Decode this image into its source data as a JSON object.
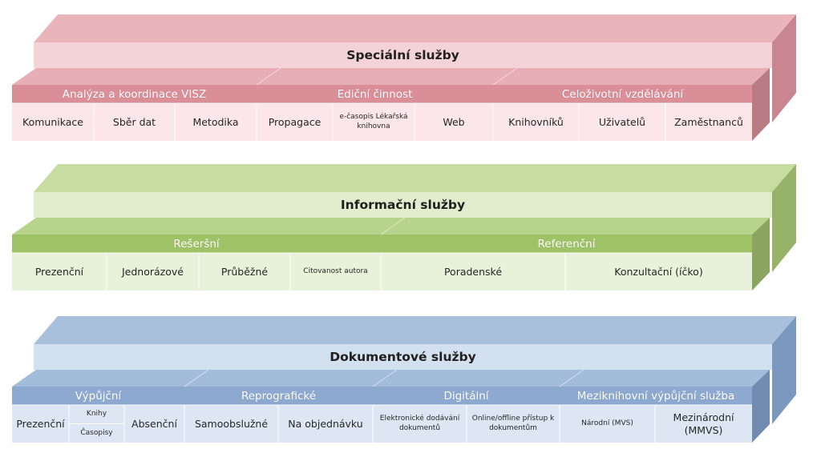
{
  "layers": [
    {
      "id": "specialni",
      "title": "Speciální služby",
      "palette": {
        "top": "#e9b5bb",
        "title_face": "#f3d3d7",
        "side": "#c98690",
        "cat_band": "#d98e98",
        "cells": "#fbe7ea",
        "cat_top": "#e8aeb6"
      },
      "categories": [
        {
          "label": "Analýza a koordinace VISZ",
          "items": [
            {
              "label": "Komunikace"
            },
            {
              "label": "Sběr dat"
            },
            {
              "label": "Metodika"
            }
          ]
        },
        {
          "label": "Ediční činnost",
          "items": [
            {
              "label": "Propagace"
            },
            {
              "label": "e-časopis Lékařská knihovna",
              "small": true
            },
            {
              "label": "Web"
            }
          ]
        },
        {
          "label": "Celoživotní vzdělávání",
          "items": [
            {
              "label": "Knihovníků"
            },
            {
              "label": "Uživatelů"
            },
            {
              "label": "Zaměstnanců"
            }
          ]
        }
      ]
    },
    {
      "id": "informacni",
      "title": "Informační služby",
      "palette": {
        "top": "#c6dca1",
        "title_face": "#e1edcc",
        "side": "#97b36a",
        "cat_band": "#9fc267",
        "cells": "#e8f1d9",
        "cat_top": "#b8d38c"
      },
      "categories": [
        {
          "label": "Rešeršní",
          "items": [
            {
              "label": "Prezenční"
            },
            {
              "label": "Jednorázové"
            },
            {
              "label": "Průběžné"
            },
            {
              "label": "Citovanost autora",
              "small": true
            }
          ]
        },
        {
          "label": "Referenční",
          "items": [
            {
              "label": "Poradenské"
            },
            {
              "label": "Konzultační (íčko)"
            }
          ]
        }
      ]
    },
    {
      "id": "dokumentove",
      "title": "Dokumentové služby",
      "palette": {
        "top": "#a9c0dd",
        "title_face": "#d3e0f0",
        "side": "#7b98bf",
        "cat_band": "#8ea9cf",
        "cells": "#dde7f4",
        "cat_top": "#a3bcdc"
      },
      "categories": [
        {
          "label": "Výpůjční",
          "items": [
            {
              "label": "Prezenční"
            },
            {
              "label": "",
              "stack": [
                "Knihy",
                "Časopisy"
              ]
            },
            {
              "label": "Absenční"
            }
          ]
        },
        {
          "label": "Reprografické",
          "items": [
            {
              "label": "Samoobslužné"
            },
            {
              "label": "Na objednávku"
            }
          ]
        },
        {
          "label": "Digitální",
          "items": [
            {
              "label": "Elektronické dodávání dokumentů",
              "small": true
            },
            {
              "label": "Online/offline přístup k dokumentům",
              "small": true
            }
          ]
        },
        {
          "label": "Meziknihovní výpůjční služba",
          "items": [
            {
              "label": "Národní (MVS)",
              "small": true
            },
            {
              "label": "Mezinárodní (MMVS)"
            }
          ]
        }
      ]
    }
  ]
}
